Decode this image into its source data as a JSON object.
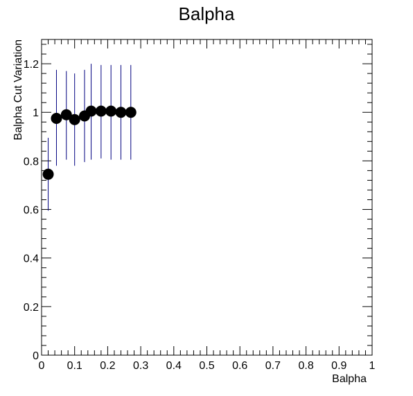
{
  "chart_data": {
    "type": "scatter",
    "title": "Balpha",
    "xlabel": "Balpha",
    "ylabel": "Balpha Cut Variation",
    "xlim": [
      0,
      1
    ],
    "ylim": [
      0,
      1.3
    ],
    "x_ticks": [
      "0",
      "0.1",
      "0.2",
      "0.3",
      "0.4",
      "0.5",
      "0.6",
      "0.7",
      "0.8",
      "0.9",
      "1"
    ],
    "y_ticks": [
      "0",
      "0.2",
      "0.4",
      "0.6",
      "0.8",
      "1",
      "1.2"
    ],
    "grid": false,
    "marker_color": "#000000",
    "error_bar_color": "#000080",
    "series": [
      {
        "x": [
          0.02,
          0.045,
          0.075,
          0.1,
          0.13,
          0.15,
          0.18,
          0.21,
          0.24,
          0.27
        ],
        "y": [
          0.745,
          0.975,
          0.99,
          0.97,
          0.985,
          1.005,
          1.005,
          1.005,
          1.0,
          1.0
        ],
        "yerr_low": [
          0.595,
          0.78,
          0.805,
          0.78,
          0.795,
          0.805,
          0.81,
          0.805,
          0.805,
          0.805
        ],
        "yerr_high": [
          0.895,
          1.175,
          1.17,
          1.16,
          1.175,
          1.2,
          1.195,
          1.195,
          1.195,
          1.195
        ]
      }
    ]
  }
}
